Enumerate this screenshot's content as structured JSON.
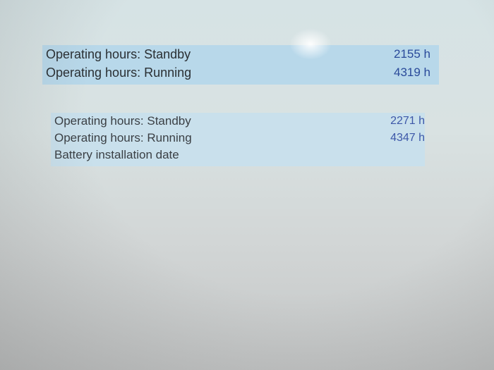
{
  "group1": {
    "rows": [
      {
        "label": "Operating hours: Standby",
        "value": "2155 h"
      },
      {
        "label": "Operating hours: Running",
        "value": "4319 h"
      }
    ]
  },
  "group2": {
    "rows": [
      {
        "label": "Operating hours: Standby",
        "value": "2271 h"
      },
      {
        "label": "Operating hours: Running",
        "value": "4347 h"
      },
      {
        "label": "Battery installation date",
        "value": ""
      }
    ]
  },
  "colors": {
    "panel": "#b8d8ea",
    "value_text": "#2a4a9a"
  }
}
